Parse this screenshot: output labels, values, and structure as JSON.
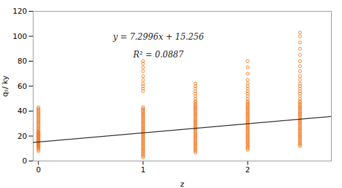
{
  "chart_data": {
    "type": "scatter",
    "xlabel": "z",
    "ylabel": "qₛ/ ky",
    "xlim": [
      -0.05,
      2.8
    ],
    "ylim": [
      0,
      120
    ],
    "xticks": [
      0,
      1,
      2
    ],
    "yticks": [
      0,
      20,
      40,
      60,
      80,
      100,
      120
    ],
    "annotations": [
      {
        "text": "y = 7.2996x + 15.256"
      },
      {
        "text": "R² = 0.0887"
      }
    ],
    "series": [
      {
        "type": "scatter",
        "marker": "circle",
        "color": "#F07820",
        "x": 0.0,
        "values": [
          8,
          9,
          10,
          11,
          11.5,
          12,
          12.5,
          13,
          13.5,
          14,
          14.5,
          15,
          15.5,
          16,
          16.5,
          17,
          17.5,
          18,
          18.5,
          19,
          19.5,
          20,
          20.5,
          21,
          21.5,
          22,
          22.5,
          23,
          23.5,
          24,
          25,
          26,
          27,
          28,
          29,
          30,
          31,
          32,
          33,
          34,
          35,
          36,
          37,
          38,
          39,
          40,
          41,
          42,
          43
        ]
      },
      {
        "type": "scatter",
        "marker": "circle",
        "color": "#F07820",
        "x": 1.0,
        "values": [
          3,
          4,
          5,
          6,
          7,
          8,
          9,
          10,
          11,
          12,
          13,
          14,
          15,
          16,
          17,
          18,
          19,
          20,
          21,
          22,
          23,
          24,
          25,
          26,
          27,
          28,
          29,
          30,
          31,
          32,
          33,
          34,
          35,
          36,
          37,
          38,
          39,
          40,
          41,
          42,
          43,
          56,
          58,
          60,
          62,
          65,
          68,
          72,
          75,
          78,
          80
        ]
      },
      {
        "type": "scatter",
        "marker": "circle",
        "color": "#F07820",
        "x": 1.5,
        "values": [
          7,
          8,
          9,
          10,
          11,
          12,
          13,
          14,
          15,
          16,
          17,
          18,
          19,
          20,
          21,
          22,
          23,
          24,
          25,
          26,
          27,
          28,
          29,
          30,
          31,
          32,
          33,
          34,
          35,
          36,
          37,
          38,
          39,
          40,
          41,
          42,
          43,
          44,
          45,
          46,
          47,
          48,
          50,
          52,
          54,
          56,
          58,
          60,
          62
        ]
      },
      {
        "type": "scatter",
        "marker": "circle",
        "color": "#F07820",
        "x": 2.0,
        "values": [
          9,
          10,
          11,
          12,
          13,
          14,
          15,
          16,
          17,
          18,
          19,
          20,
          21,
          22,
          23,
          24,
          25,
          26,
          27,
          28,
          29,
          30,
          31,
          32,
          33,
          34,
          35,
          36,
          37,
          38,
          39,
          40,
          41,
          42,
          43,
          44,
          45,
          46,
          47,
          48,
          50,
          52,
          54,
          56,
          58,
          60,
          62,
          65,
          70,
          75,
          80
        ]
      },
      {
        "type": "scatter",
        "marker": "circle",
        "color": "#F07820",
        "x": 2.5,
        "values": [
          12,
          13,
          14,
          15,
          16,
          17,
          18,
          19,
          20,
          21,
          22,
          23,
          24,
          25,
          26,
          27,
          28,
          29,
          30,
          31,
          32,
          33,
          34,
          35,
          36,
          37,
          38,
          39,
          40,
          41,
          42,
          43,
          44,
          45,
          46,
          47,
          48,
          50,
          52,
          54,
          56,
          58,
          60,
          62,
          65,
          68,
          72,
          76,
          80,
          85,
          90,
          95,
          100,
          103
        ]
      },
      {
        "type": "line",
        "line_style": "solid",
        "color": "#2a2a2a",
        "x": [
          -0.05,
          2.8
        ],
        "values": [
          14.89102,
          35.69488
        ]
      }
    ]
  }
}
